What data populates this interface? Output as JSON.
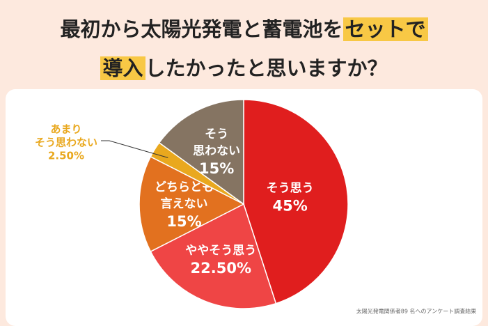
{
  "chart_data": {
    "type": "pie",
    "title": [
      "最初から太陽光発電と蓄電池を",
      "セットで",
      "導入",
      "したかったと思いますか？"
    ],
    "title_highlight": [
      false,
      true,
      true,
      false
    ],
    "categories": [
      [
        "そう思う"
      ],
      [
        "ややそう思う"
      ],
      [
        "どちらとも",
        "言えない"
      ],
      [
        "あまり",
        "そう思わない"
      ],
      [
        "そう",
        "思わない"
      ]
    ],
    "values": [
      45,
      22.5,
      15,
      2.5,
      15
    ],
    "value_labels": [
      "45%",
      "22.50%",
      "15%",
      "2.50%",
      "15%"
    ],
    "colors": [
      "#e01e1e",
      "#ef4545",
      "#e2711f",
      "#e9a81e",
      "#857462"
    ],
    "source": "太陽光発電関係者89 名へのアンケート調査結果"
  }
}
